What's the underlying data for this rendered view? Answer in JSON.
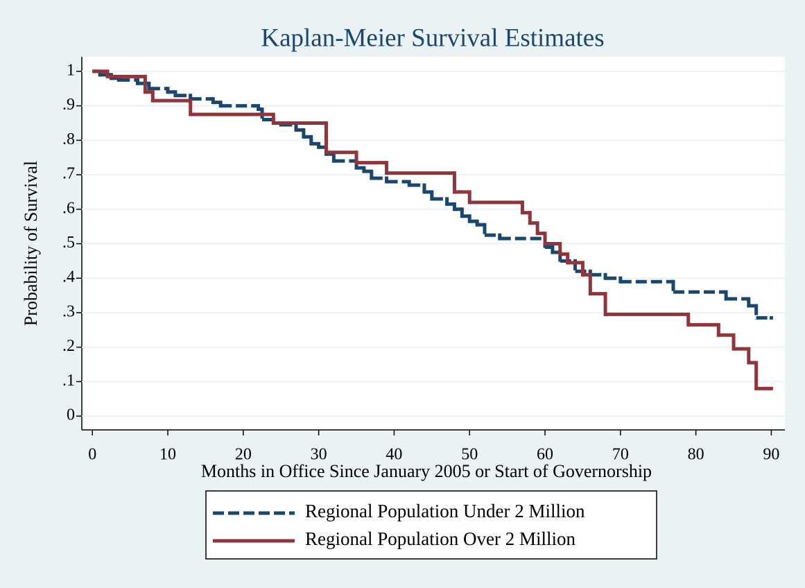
{
  "chart_data": {
    "type": "step",
    "title": "Kaplan-Meier Survival Estimates",
    "x_label": "Months in Office Since January 2005 or Start of Governorship",
    "y_label": "Probability of Survival",
    "xlim": [
      -1.4,
      91.8
    ],
    "ylim": [
      -0.04,
      1.042
    ],
    "xticks": [
      0,
      10,
      20,
      30,
      40,
      50,
      60,
      70,
      80,
      90
    ],
    "yticks": [
      0,
      {
        "value": 0.1,
        "label": ".1"
      },
      {
        "value": 0.2,
        "label": ".2"
      },
      {
        "value": 0.3,
        "label": ".3"
      },
      {
        "value": 0.4,
        "label": ".4"
      },
      {
        "value": 0.5,
        "label": ".5"
      },
      {
        "value": 0.6,
        "label": ".6"
      },
      {
        "value": 0.7,
        "label": ".7"
      },
      {
        "value": 0.8,
        "label": ".8"
      },
      {
        "value": 0.9,
        "label": ".9"
      },
      1
    ],
    "grid": true,
    "legend_position": "bottom",
    "series": [
      {
        "name": "Regional Population Under 2 Million",
        "color": "#1a476f",
        "line_style": "dashed",
        "x": [
          0,
          1,
          2.5,
          3.5,
          6,
          7.5,
          10,
          11,
          13,
          16,
          17,
          22,
          22.5,
          24,
          25,
          27,
          28,
          29,
          30,
          31,
          32,
          35,
          36,
          37,
          39,
          42,
          44,
          45,
          47,
          48,
          49,
          50,
          51,
          52,
          54,
          60,
          61,
          62,
          64,
          66,
          68,
          70,
          77,
          84,
          87,
          88,
          90
        ],
        "values": [
          1,
          0.99,
          0.98,
          0.975,
          0.965,
          0.95,
          0.94,
          0.93,
          0.92,
          0.91,
          0.9,
          0.89,
          0.86,
          0.85,
          0.845,
          0.83,
          0.81,
          0.79,
          0.78,
          0.76,
          0.74,
          0.72,
          0.71,
          0.69,
          0.68,
          0.67,
          0.65,
          0.63,
          0.615,
          0.6,
          0.58,
          0.565,
          0.555,
          0.525,
          0.515,
          0.49,
          0.475,
          0.45,
          0.42,
          0.41,
          0.4,
          0.39,
          0.36,
          0.34,
          0.32,
          0.285,
          0.285
        ]
      },
      {
        "name": "Regional Population Over 2 Million",
        "color": "#90353b",
        "line_style": "solid",
        "x": [
          0,
          2,
          7,
          8,
          13,
          24,
          31,
          35,
          39,
          48,
          50,
          57,
          58,
          59,
          60,
          62,
          63,
          65,
          66,
          68,
          79,
          83,
          85,
          87,
          88,
          90
        ],
        "values": [
          1,
          0.985,
          0.94,
          0.915,
          0.875,
          0.85,
          0.765,
          0.735,
          0.705,
          0.65,
          0.62,
          0.59,
          0.56,
          0.53,
          0.5,
          0.47,
          0.445,
          0.41,
          0.355,
          0.295,
          0.265,
          0.235,
          0.195,
          0.155,
          0.08,
          0.08
        ]
      }
    ]
  }
}
